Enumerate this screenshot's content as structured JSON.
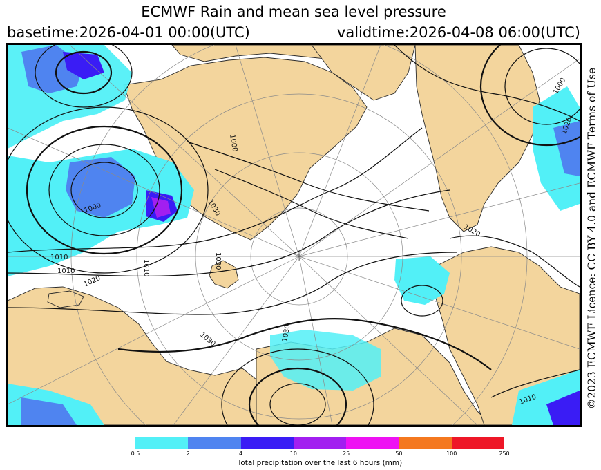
{
  "title": "ECMWF Rain and mean sea level pressure",
  "basetime": "basetime:2026-04-01 00:00(UTC)",
  "validtime": "validtime:2026-04-08 06:00(UTC)",
  "credit": "©2023 ECMWF Licence: CC BY 4.0 and ECMWF Terms of Use",
  "legend": {
    "label": "Total precipitation over the last 6 hours (mm)",
    "ticks": [
      "0.5",
      "2",
      "4",
      "10",
      "25",
      "50",
      "100",
      "250"
    ],
    "colors": [
      "#52f0f7",
      "#4f84f0",
      "#3a1cf5",
      "#a21ff0",
      "#ee12f3",
      "#f4781f",
      "#ee1727"
    ]
  },
  "isobar_labels": [
    "1000",
    "1000",
    "1000",
    "1010",
    "1010",
    "1010",
    "1020",
    "1020",
    "1020",
    "1030",
    "1030",
    "1030",
    "1030",
    "1010"
  ],
  "colors": {
    "land": "#f3d59d",
    "ocean": "#ffffff",
    "isobar": "#111111",
    "grid": "#8a8a8a"
  }
}
